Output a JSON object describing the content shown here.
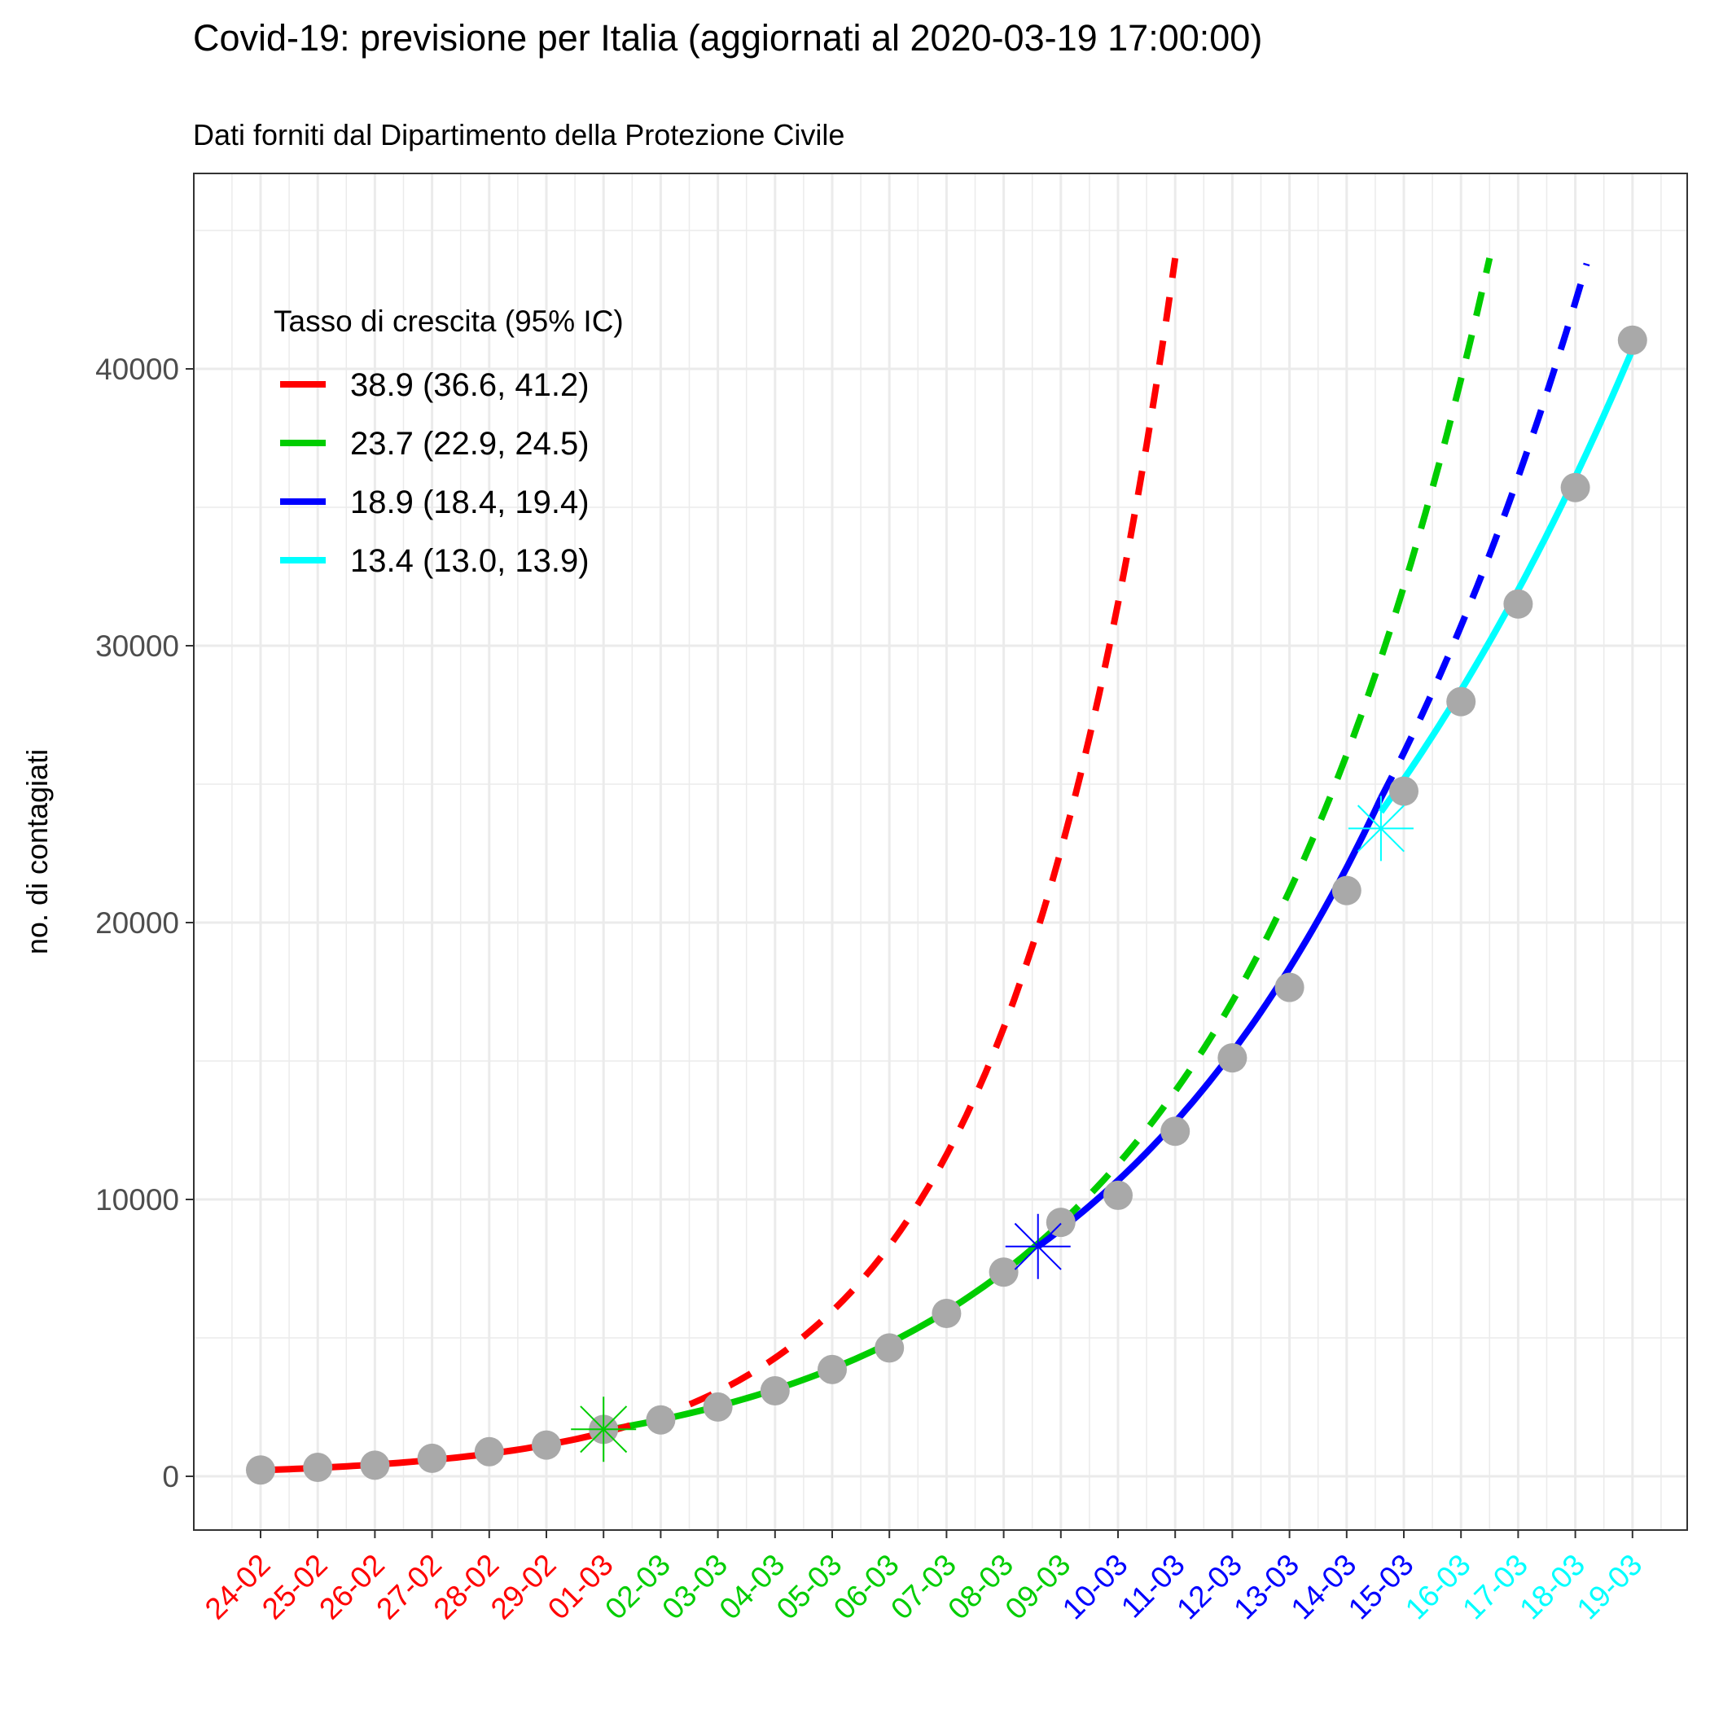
{
  "chart_data": {
    "type": "line",
    "title": "Covid-19: previsione per Italia (aggiornati al 2020-03-19 17:00:00)",
    "subtitle": "Dati forniti dal Dipartimento della Protezione Civile",
    "ylabel": "no. di contagiati",
    "xlabel": "",
    "ylim": [
      -2200,
      46500
    ],
    "yticks": [
      0,
      10000,
      20000,
      30000,
      40000
    ],
    "grid": true,
    "legend_position": "top-left",
    "legend_title": "Tasso di crescita (95% IC)",
    "categories": [
      "24-02",
      "25-02",
      "26-02",
      "27-02",
      "28-02",
      "29-02",
      "01-03",
      "02-03",
      "03-03",
      "04-03",
      "05-03",
      "06-03",
      "07-03",
      "08-03",
      "09-03",
      "10-03",
      "11-03",
      "12-03",
      "13-03",
      "14-03",
      "15-03",
      "16-03",
      "17-03",
      "18-03",
      "19-03"
    ],
    "category_colors": [
      "#ff0000",
      "#ff0000",
      "#ff0000",
      "#ff0000",
      "#ff0000",
      "#ff0000",
      "#ff0000",
      "#00cd00",
      "#00cd00",
      "#00cd00",
      "#00cd00",
      "#00cd00",
      "#00cd00",
      "#00cd00",
      "#00cd00",
      "#0000ff",
      "#0000ff",
      "#0000ff",
      "#0000ff",
      "#0000ff",
      "#0000ff",
      "#00ffff",
      "#00ffff",
      "#00ffff",
      "#00ffff"
    ],
    "points": {
      "color": "#a9a9a9",
      "values": [
        229,
        322,
        400,
        650,
        888,
        1128,
        1694,
        2036,
        2502,
        3089,
        3858,
        4636,
        5883,
        7375,
        9172,
        10149,
        12462,
        15113,
        17660,
        21157,
        24747,
        27980,
        31506,
        35713,
        41035
      ]
    },
    "series": [
      {
        "name": "38.9 (36.6, 41.2)",
        "color": "#ff0000",
        "growth_rate": 38.9,
        "fit": {
          "x": [
            0,
            6.05
          ],
          "y": [
            220,
            1600
          ]
        },
        "forecast": {
          "x": [
            6.05,
            16.0
          ],
          "y": [
            1600,
            44000
          ]
        }
      },
      {
        "name": "23.7 (22.9, 24.5)",
        "color": "#00cd00",
        "growth_rate": 23.7,
        "fit": {
          "x": [
            6.0,
            14.0
          ],
          "y": [
            1650,
            9150
          ]
        },
        "forecast": {
          "x": [
            14.0,
            21.5
          ],
          "y": [
            9150,
            44000
          ]
        },
        "breakpoint": {
          "x": 6.0,
          "y": 1700
        }
      },
      {
        "name": "18.9 (18.4, 19.4)",
        "color": "#0000ff",
        "growth_rate": 18.9,
        "fit": {
          "x": [
            13.6,
            19.6
          ],
          "y": [
            8300,
            24500
          ]
        },
        "forecast": {
          "x": [
            19.6,
            23.2
          ],
          "y": [
            24500,
            43800
          ]
        },
        "breakpoint": {
          "x": 13.6,
          "y": 8300
        }
      },
      {
        "name": "13.4 (13.0, 13.9)",
        "color": "#00ffff",
        "growth_rate": 13.4,
        "fit": {
          "x": [
            19.6,
            24.0
          ],
          "y": [
            24000,
            40700
          ]
        },
        "breakpoint": {
          "x": 19.6,
          "y": 23400
        }
      }
    ]
  }
}
